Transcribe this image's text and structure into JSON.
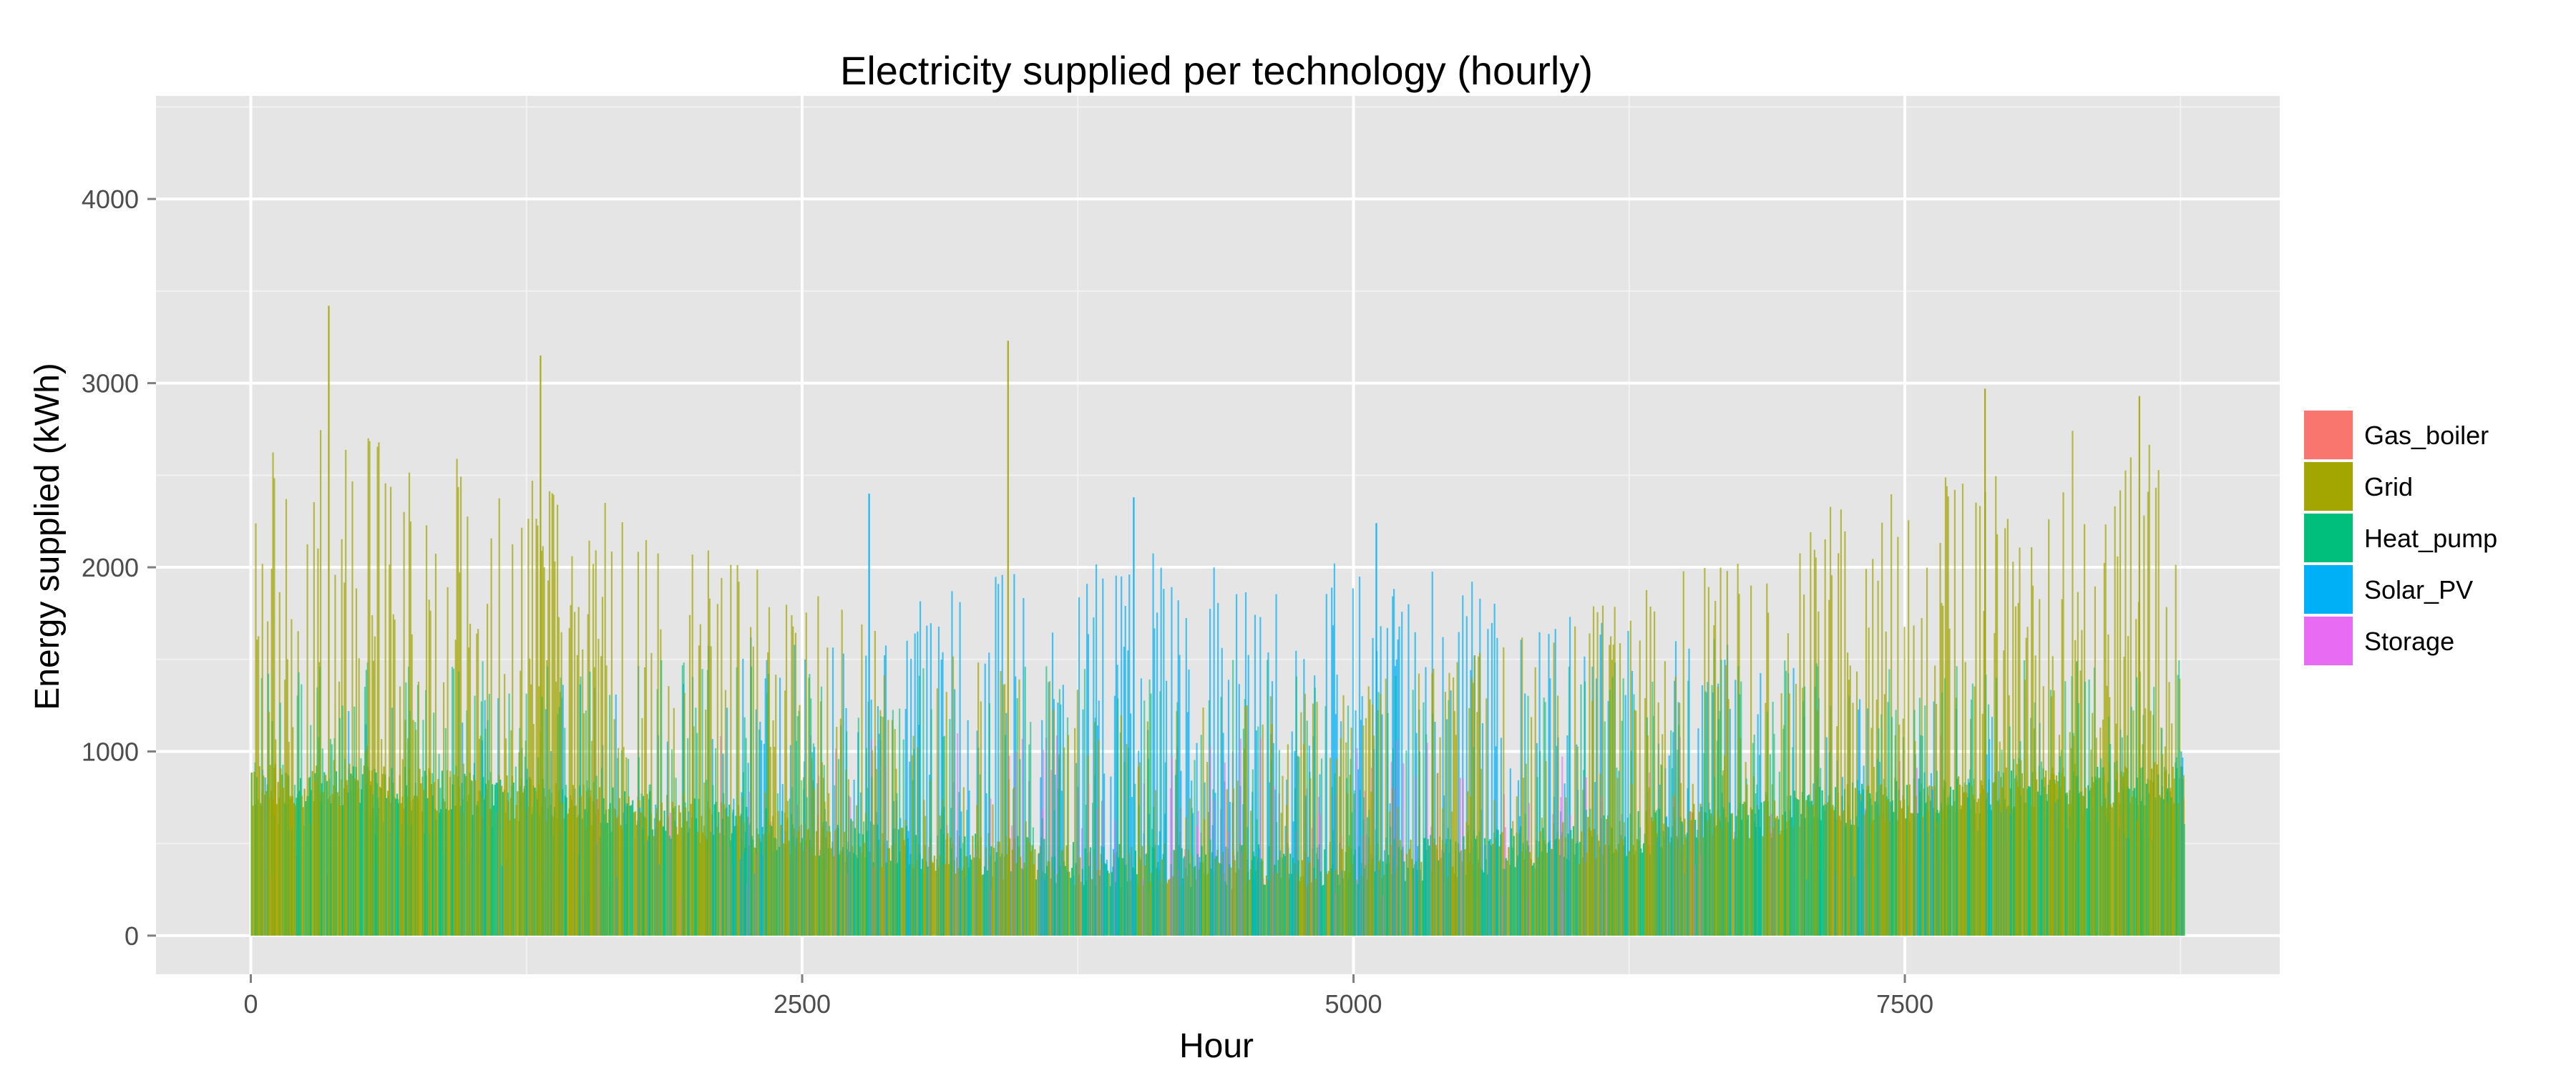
{
  "chart_data": {
    "type": "bar",
    "title": "Electricity supplied per technology (hourly)",
    "xlabel": "Hour",
    "ylabel": "Energy supplied (kWh)",
    "xlim": [
      -430,
      9200
    ],
    "ylim": [
      -210,
      4560
    ],
    "x_ticks": [
      0,
      2500,
      5000,
      7500
    ],
    "x_tick_labels": [
      "0",
      "2500",
      "5000",
      "7500"
    ],
    "y_ticks": [
      0,
      1000,
      2000,
      3000,
      4000
    ],
    "y_tick_labels": [
      "0",
      "1000",
      "2000",
      "3000",
      "4000"
    ],
    "grid": true,
    "legend_position": "right",
    "hour_range": [
      0,
      8760
    ],
    "series": [
      {
        "name": "Gas_boiler",
        "color": "#F8766D"
      },
      {
        "name": "Grid",
        "color": "#A3A500"
      },
      {
        "name": "Heat_pump",
        "color": "#00BF7D"
      },
      {
        "name": "Solar_PV",
        "color": "#00B0F6"
      },
      {
        "name": "Storage",
        "color": "#E76BF3"
      }
    ],
    "notable_peaks": [
      {
        "series": "Grid",
        "x": 350,
        "value": 3420
      },
      {
        "series": "Grid",
        "x": 1310,
        "value": 3150
      },
      {
        "series": "Grid",
        "x": 3430,
        "value": 3230
      },
      {
        "series": "Grid",
        "x": 7860,
        "value": 2970
      },
      {
        "series": "Grid",
        "x": 8560,
        "value": 2930
      },
      {
        "series": "Solar_PV",
        "x": 2800,
        "value": 2400
      },
      {
        "series": "Solar_PV",
        "x": 5100,
        "value": 2240
      },
      {
        "series": "Solar_PV",
        "x": 4000,
        "value": 2380
      }
    ]
  }
}
